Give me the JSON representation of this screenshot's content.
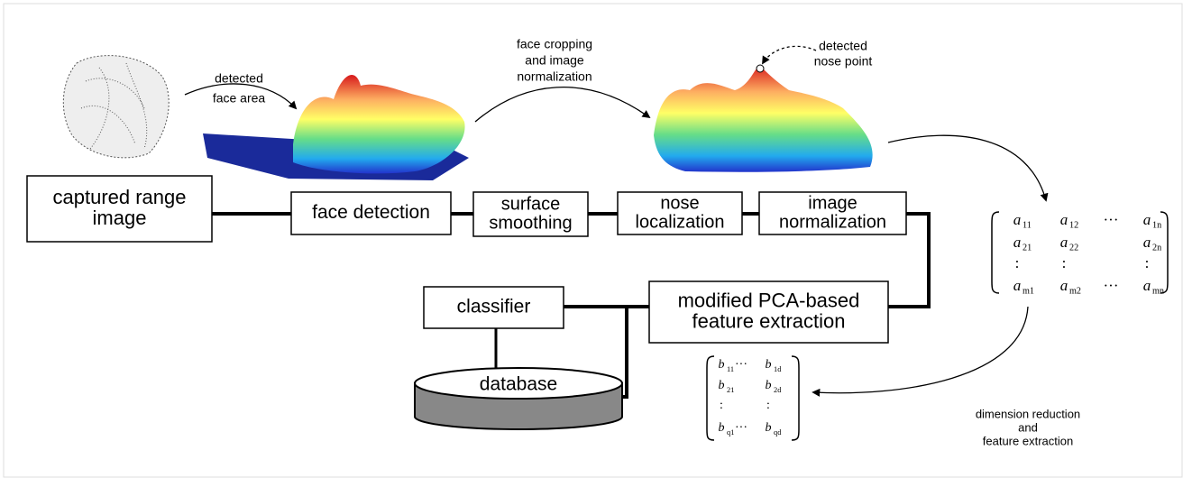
{
  "annotations": [
    {
      "lines": [
        "detected",
        "face area"
      ]
    },
    {
      "lines": [
        "face cropping",
        "and image",
        "normalization"
      ]
    },
    {
      "lines": [
        "detected",
        "nose point"
      ]
    },
    {
      "lines": [
        "dimension reduction",
        "and",
        "feature extraction"
      ]
    }
  ],
  "boxes": [
    {
      "lines": [
        "captured range",
        "image"
      ]
    },
    {
      "lines": [
        "face detection"
      ]
    },
    {
      "lines": [
        "surface",
        "smoothing"
      ]
    },
    {
      "lines": [
        "nose",
        "localization"
      ]
    },
    {
      "lines": [
        "image",
        "normalization"
      ]
    },
    {
      "lines": [
        "modified PCA-based",
        "feature extraction"
      ]
    },
    {
      "lines": [
        "classifier"
      ]
    }
  ],
  "database": {
    "label": "database"
  },
  "matrix_a": {
    "rows": [
      [
        {
          "base": "a",
          "sub": "11"
        },
        {
          "base": "a",
          "sub": "12"
        },
        {
          "base": "···"
        },
        {
          "base": "a",
          "sub": "1n"
        }
      ],
      [
        {
          "base": "a",
          "sub": "21"
        },
        {
          "base": "a",
          "sub": "22"
        },
        null,
        {
          "base": "a",
          "sub": "2n"
        }
      ],
      [
        {
          "base": ":"
        },
        {
          "base": ":"
        },
        null,
        {
          "base": ":"
        }
      ],
      [
        {
          "base": "a",
          "sub": "m1"
        },
        {
          "base": "a",
          "sub": "m2"
        },
        {
          "base": "···"
        },
        {
          "base": "a",
          "sub": "mn"
        }
      ]
    ]
  },
  "matrix_b": {
    "rows": [
      [
        {
          "base": "b",
          "sub": "11"
        },
        {
          "base": "···"
        },
        {
          "base": "b",
          "sub": "1d"
        }
      ],
      [
        {
          "base": "b",
          "sub": "21"
        },
        null,
        {
          "base": "b",
          "sub": "2d"
        }
      ],
      [
        {
          "base": ":"
        },
        null,
        {
          "base": ":"
        }
      ],
      [
        {
          "base": "b",
          "sub": "q1"
        },
        {
          "base": "···"
        },
        {
          "base": "b",
          "sub": "qd"
        }
      ]
    ]
  }
}
